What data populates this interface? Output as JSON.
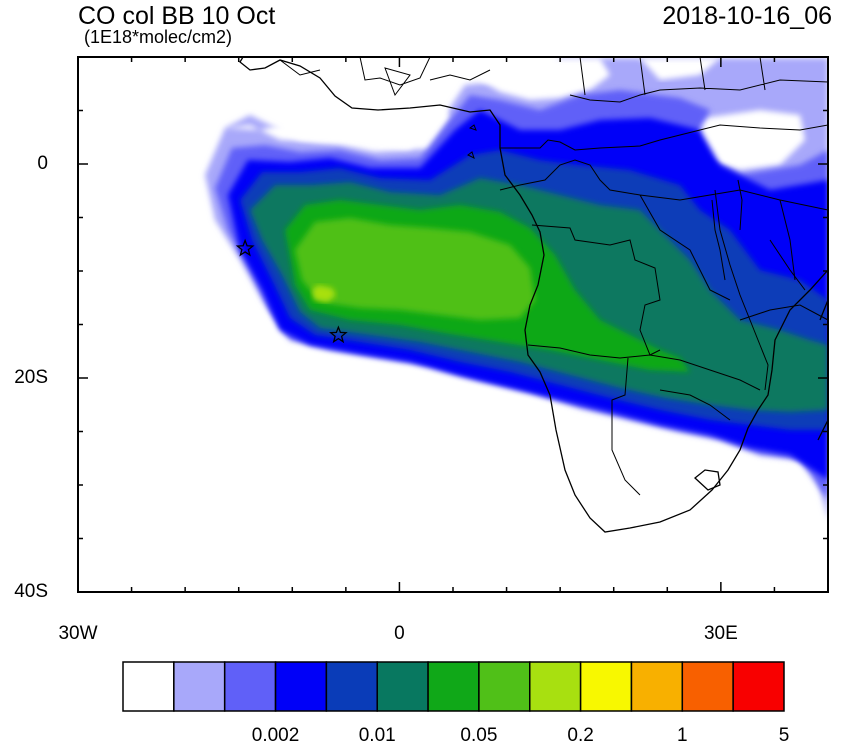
{
  "header": {
    "title": "CO col BB 10 Oct",
    "units": "(1E18*molec/cm2)",
    "timestamp": "2018-10-16_06"
  },
  "map": {
    "projection": "lat-lon",
    "lon_range": [
      -30,
      40
    ],
    "lat_range": [
      -40,
      10
    ],
    "x_ticks": [
      {
        "value": -30,
        "label": "30W"
      },
      {
        "value": 0,
        "label": "0"
      },
      {
        "value": 30,
        "label": "30E"
      }
    ],
    "y_ticks": [
      {
        "value": 0,
        "label": "0"
      },
      {
        "value": -20,
        "label": "20S"
      },
      {
        "value": -40,
        "label": "40S"
      }
    ],
    "markers": [
      {
        "type": "star",
        "lon": -14.4,
        "lat": -7.9
      },
      {
        "type": "star",
        "lon": -5.7,
        "lat": -16.0
      }
    ]
  },
  "colorbar": {
    "colors": [
      "#ffffff",
      "#a8a8fa",
      "#6060f8",
      "#0000f8",
      "#0a3cb8",
      "#087860",
      "#10a818",
      "#50c018",
      "#a8e010",
      "#f8f800",
      "#f8b000",
      "#f86000",
      "#f80000"
    ],
    "labels": [
      "0.002",
      "0.01",
      "0.05",
      "0.2",
      "1",
      "5"
    ]
  }
}
